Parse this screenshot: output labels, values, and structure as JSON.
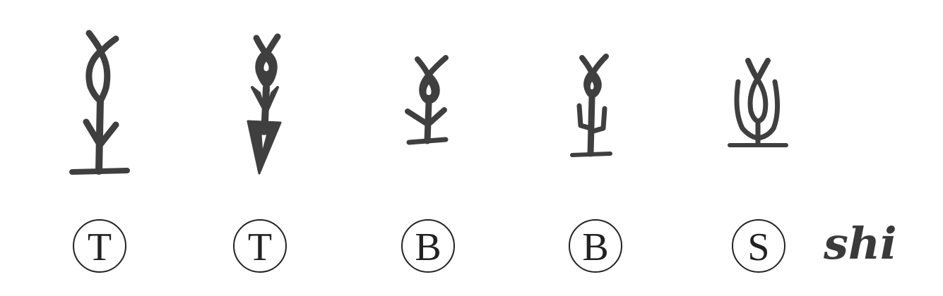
{
  "forms": [
    {
      "label": "T",
      "glyph_icon": "oracle-bone-shi-glyph"
    },
    {
      "label": "T",
      "glyph_icon": "bronze-arrow-shi-glyph"
    },
    {
      "label": "B",
      "glyph_icon": "small-seal-shi-glyph"
    },
    {
      "label": "B",
      "glyph_icon": "branched-shi-glyph"
    },
    {
      "label": "S",
      "glyph_icon": "u-shaped-shi-glyph"
    }
  ],
  "word": "shi",
  "colors": {
    "glyph": "#3f3f3f",
    "text": "#222222"
  }
}
